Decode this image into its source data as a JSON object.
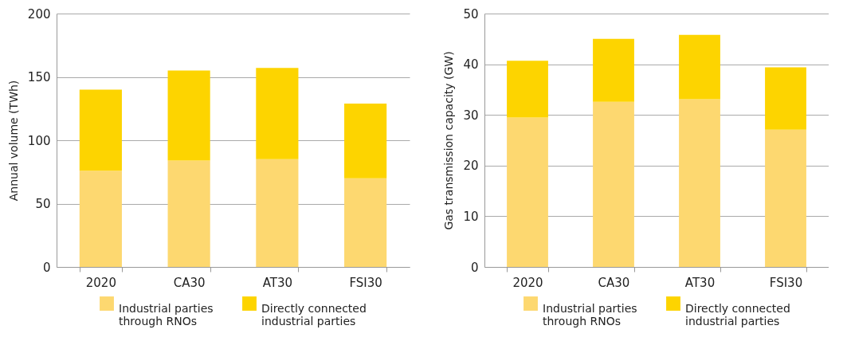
{
  "chart_data": [
    {
      "type": "bar",
      "stacked": true,
      "ylabel": "Annual volume (TWh)",
      "categories": [
        "2020",
        "CA30",
        "AT30",
        "FSI30"
      ],
      "ylim": [
        0,
        200
      ],
      "yticks": [
        0,
        50,
        100,
        150,
        200
      ],
      "grid": "y",
      "legend": "bottom",
      "series": [
        {
          "name": "Industrial parties through RNOs",
          "color": "#fdd870",
          "values": [
            76,
            84,
            85,
            70
          ]
        },
        {
          "name": "Directly connected industrial parties",
          "color": "#fdd400",
          "values": [
            64,
            71,
            72,
            59
          ]
        }
      ]
    },
    {
      "type": "bar",
      "stacked": true,
      "ylabel": "Gas transmission capacity (GW)",
      "categories": [
        "2020",
        "CA30",
        "AT30",
        "FSI30"
      ],
      "ylim": [
        0,
        50
      ],
      "yticks": [
        0,
        10,
        20,
        30,
        40,
        50
      ],
      "grid": "y",
      "legend": "bottom",
      "series": [
        {
          "name": "Industrial parties through RNOs",
          "color": "#fdd870",
          "values": [
            29.5,
            32.6,
            33.1,
            27.1
          ]
        },
        {
          "name": "Directly connected industrial parties",
          "color": "#fdd400",
          "values": [
            11.2,
            12.4,
            12.7,
            12.3
          ]
        }
      ]
    }
  ]
}
